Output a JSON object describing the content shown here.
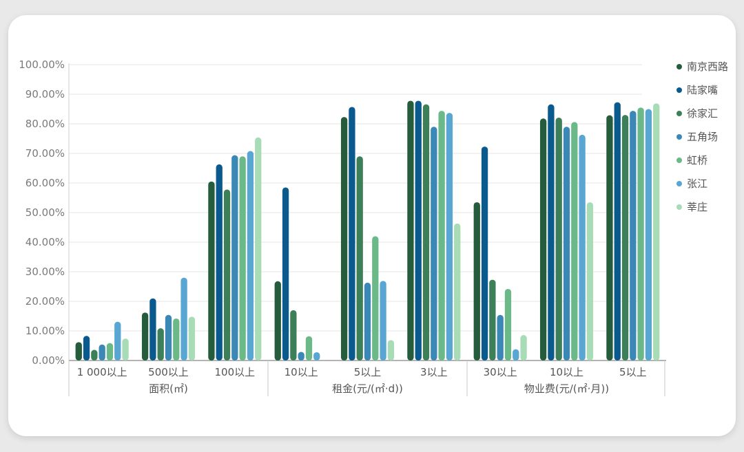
{
  "chart_data": {
    "type": "bar",
    "y_ticks": [
      "0.00%",
      "10.00%",
      "20.00%",
      "30.00%",
      "40.00%",
      "50.00%",
      "60.00%",
      "70.00%",
      "80.00%",
      "90.00%",
      "100.00%"
    ],
    "ylim": [
      0,
      100
    ],
    "grid": true,
    "legend_position": "right",
    "categories": [
      "1 000以上",
      "500以上",
      "100以上",
      "10以上",
      "5以上",
      "3以上",
      "30以上",
      "10以上",
      "5以上"
    ],
    "groups": [
      {
        "label": "面积(㎡)",
        "size": 3
      },
      {
        "label": "租金(元/(㎡·d))",
        "size": 3
      },
      {
        "label": "物业费(元/(㎡·月))",
        "size": 3
      }
    ],
    "series": [
      {
        "name": "南京西路",
        "color": "#245c3c",
        "values": [
          6.2,
          16.2,
          60.5,
          26.8,
          82.3,
          87.8,
          53.5,
          81.8,
          82.9
        ]
      },
      {
        "name": "陆家嘴",
        "color": "#0a5a8e",
        "values": [
          8.3,
          21.0,
          66.3,
          58.5,
          85.7,
          87.8,
          72.3,
          86.6,
          87.3
        ]
      },
      {
        "name": "徐家汇",
        "color": "#3d7f58",
        "values": [
          3.6,
          10.9,
          57.8,
          17.0,
          69.0,
          86.6,
          27.3,
          82.1,
          83.0
        ]
      },
      {
        "name": "五角场",
        "color": "#3b88b6",
        "values": [
          5.4,
          15.4,
          69.4,
          2.9,
          26.3,
          79.0,
          15.4,
          79.0,
          84.4
        ]
      },
      {
        "name": "虹桥",
        "color": "#6bb888",
        "values": [
          5.9,
          14.2,
          69.0,
          8.2,
          42.0,
          84.4,
          24.2,
          80.6,
          85.5
        ]
      },
      {
        "name": "张江",
        "color": "#5aa6d2",
        "values": [
          13.1,
          28.0,
          70.8,
          2.8,
          26.9,
          83.7,
          3.8,
          76.3,
          85.0
        ]
      },
      {
        "name": "莘庄",
        "color": "#a8dcb6",
        "values": [
          7.4,
          14.8,
          75.4,
          0,
          6.9,
          46.3,
          8.6,
          53.5,
          86.9
        ]
      }
    ]
  }
}
